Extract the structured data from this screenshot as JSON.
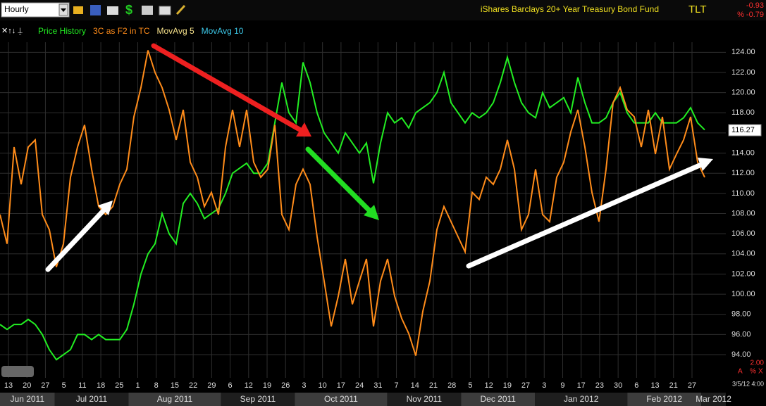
{
  "header": {
    "interval": "Hourly",
    "fund_name": "iShares Barclays 20+ Year Treasury Bond Fund",
    "symbol": "TLT",
    "change": "-0.93",
    "change_pct": "% -0.79"
  },
  "footer": {
    "scale_value": "2.00",
    "scale_buttons": [
      "A",
      "%",
      "X"
    ],
    "timestamp": "3/5/12 4:00"
  },
  "chart_data": {
    "type": "line",
    "indicators": [
      {
        "name": "MovAvg 5",
        "color": "#f5e08a"
      },
      {
        "name": "MovAvg 10",
        "color": "#3cc8e8"
      }
    ],
    "series": [
      {
        "name": "Price History",
        "color": "#22ee22",
        "values": [
          97,
          96.5,
          97,
          97,
          97.5,
          97,
          96,
          94.5,
          93.5,
          94,
          94.5,
          96,
          96,
          95.5,
          96,
          95.5,
          95.5,
          95.5,
          96.5,
          99,
          102,
          104,
          105,
          108,
          106,
          105,
          109,
          110,
          109,
          107.5,
          108,
          108.5,
          110,
          112,
          112.5,
          113,
          112,
          112,
          113,
          117,
          121,
          118,
          117,
          123,
          121,
          118,
          116,
          115,
          114,
          116,
          115,
          114,
          115,
          111,
          115,
          118,
          117,
          117.5,
          116.5,
          118,
          118.5,
          119,
          120,
          122,
          119,
          118,
          117,
          118,
          117.5,
          118,
          119,
          121,
          123.5,
          121,
          119,
          118,
          117.5,
          120,
          118.5,
          119,
          119.5,
          118,
          121.5,
          119,
          117,
          117,
          117.5,
          119,
          120,
          118,
          117,
          117,
          117,
          118,
          117,
          117,
          117,
          117.5,
          118.5,
          117,
          116.3
        ]
      },
      {
        "name": "3C as F2 in TC",
        "color": "#ff8c1a",
        "values": [
          107.9,
          105,
          114.6,
          110.9,
          114.6,
          115.3,
          107.9,
          106.4,
          102.7,
          105,
          111.6,
          114.6,
          116.8,
          112.4,
          108.7,
          107.9,
          108.7,
          110.9,
          112.4,
          117.6,
          120.5,
          124.2,
          122,
          120.5,
          118.3,
          115.3,
          118.3,
          113.1,
          111.6,
          108.7,
          110.1,
          107.9,
          114.6,
          118.3,
          114.6,
          118.3,
          113.1,
          111.6,
          112.4,
          116.8,
          107.9,
          106.4,
          110.9,
          112.4,
          110.9,
          105.7,
          101.3,
          96.8,
          99.8,
          103.5,
          99,
          101.3,
          103.5,
          96.8,
          101.3,
          103.5,
          99.8,
          97.6,
          96.1,
          93.9,
          98.3,
          101.3,
          106.4,
          108.7,
          107.2,
          105.7,
          104.2,
          110.1,
          109.4,
          111.6,
          110.9,
          112.4,
          115.3,
          112.4,
          106.4,
          107.9,
          112.4,
          107.9,
          107.2,
          111.6,
          113.1,
          116.1,
          118.3,
          114.6,
          110.1,
          107.2,
          112.4,
          119,
          120.5,
          118.3,
          117.6,
          114.6,
          118.3,
          113.9,
          117.6,
          112.4,
          113.9,
          115.3,
          117.6,
          113.1,
          111.6
        ]
      }
    ],
    "last_price": 116.27,
    "ylim": [
      91.7,
      125
    ],
    "yticks": [
      {
        "value": 94,
        "label": "94.00"
      },
      {
        "value": 96,
        "label": "96.00"
      },
      {
        "value": 98,
        "label": "98.00"
      },
      {
        "value": 100,
        "label": "100.00"
      },
      {
        "value": 102,
        "label": "102.00"
      },
      {
        "value": 104,
        "label": "104.00"
      },
      {
        "value": 106,
        "label": "106.00"
      },
      {
        "value": 108,
        "label": "108.00"
      },
      {
        "value": 110,
        "label": "110.00"
      },
      {
        "value": 112,
        "label": "112.00"
      },
      {
        "value": 114,
        "label": "114.00"
      },
      {
        "value": 116,
        "label": "116.00"
      },
      {
        "value": 118,
        "label": "118.00"
      },
      {
        "value": 120,
        "label": "120.00"
      },
      {
        "value": 122,
        "label": "122.00"
      },
      {
        "value": 124,
        "label": "124.00"
      }
    ],
    "day_labels": [
      "13",
      "20",
      "27",
      "5",
      "11",
      "18",
      "25",
      "1",
      "8",
      "15",
      "22",
      "29",
      "6",
      "12",
      "19",
      "26",
      "3",
      "10",
      "17",
      "24",
      "31",
      "7",
      "14",
      "21",
      "28",
      "5",
      "12",
      "19",
      "27",
      "3",
      "9",
      "17",
      "23",
      "30",
      "6",
      "13",
      "21",
      "27"
    ],
    "months": [
      "Jun 2011",
      "Jul 2011",
      "Aug 2011",
      "Sep 2011",
      "Oct 2011",
      "Nov 2011",
      "Dec 2011",
      "Jan 2012",
      "Feb 2012",
      "Mar 2012"
    ],
    "grid": true
  }
}
